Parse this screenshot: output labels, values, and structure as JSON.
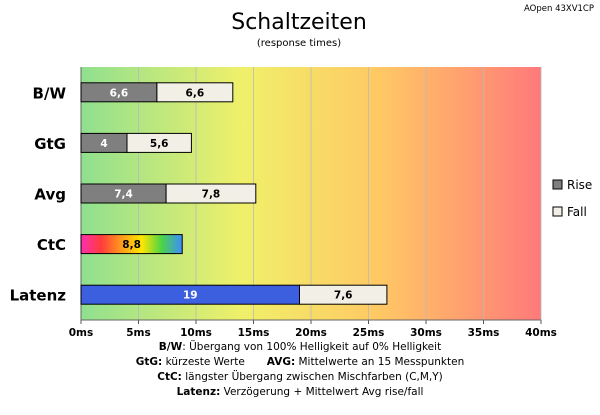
{
  "chart_data": {
    "type": "bar",
    "orientation": "horizontal",
    "stacked": true,
    "title": "Schaltzeiten",
    "subtitle": "(response times)",
    "model": "AOpen 43XV1CP",
    "categories": [
      "B/W",
      "GtG",
      "Avg",
      "CtC",
      "Latenz"
    ],
    "series": [
      {
        "name": "Rise",
        "values": [
          6.6,
          4,
          7.4,
          8.8,
          19
        ],
        "labels": [
          "6,6",
          "4",
          "7,4",
          "8,8",
          "19"
        ]
      },
      {
        "name": "Fall",
        "values": [
          6.6,
          5.6,
          7.8,
          null,
          7.6
        ],
        "labels": [
          "6,6",
          "5,6",
          "7,8",
          "",
          "7,6"
        ]
      }
    ],
    "xlim": [
      0,
      40
    ],
    "xticks": [
      0,
      5,
      10,
      15,
      20,
      25,
      30,
      35,
      40
    ],
    "xtick_labels": [
      "0ms",
      "5ms",
      "10ms",
      "15ms",
      "20ms",
      "25ms",
      "30ms",
      "35ms",
      "40ms"
    ],
    "legend_position": "right",
    "grid": true,
    "colors": {
      "rise": "#7f7f7f",
      "fall": "#f2f0e6",
      "latenz": "#3c5fe0",
      "ctc_gradient": [
        "#ff2fb0",
        "#ff3c3c",
        "#ff9a1a",
        "#ffe600",
        "#49d449",
        "#3f8cff"
      ],
      "background_gradient": [
        "#8fe08f",
        "#f0f06a",
        "#ffc864",
        "#ff7a7a"
      ]
    }
  },
  "footer": {
    "line1_key": "B/W",
    "line1_text": ":  Übergang von 100% Helligkeit auf 0% Helligkeit",
    "line2a_key": "GtG:",
    "line2a_text": " kürzeste  Werte",
    "line2b_key": "AVG:",
    "line2b_text": " Mittelwerte  an 15 Messpunkten",
    "line3_key": "CtC:",
    "line3_text": " längster Übergang  zwischen Mischfarben  (C,M,Y)",
    "line4_key": "Latenz:",
    "line4_text": " Verzögerung  + Mittelwert  Avg rise/fall"
  }
}
